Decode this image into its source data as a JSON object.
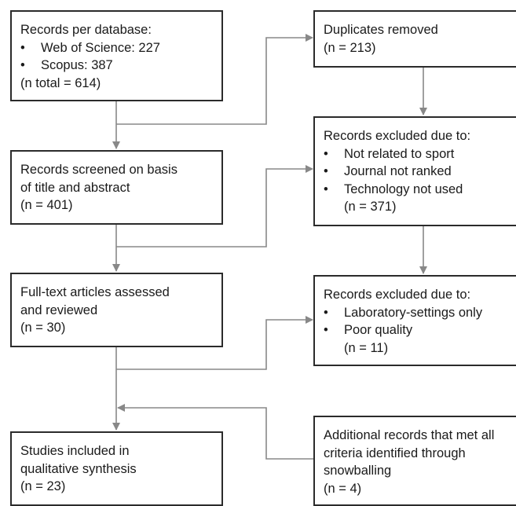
{
  "records": {
    "title": "Records per database:",
    "items": [
      "Web of Science: 227",
      "Scopus: 387"
    ],
    "total": "(n total = 614)"
  },
  "duplicates": {
    "title": "Duplicates removed",
    "count": "(n = 213)"
  },
  "screened": {
    "lines": [
      "Records screened on basis",
      "of title and abstract"
    ],
    "count": "(n = 401)"
  },
  "excluded1": {
    "title": "Records excluded due to:",
    "items": [
      "Not related to sport",
      "Journal not ranked",
      "Technology not used"
    ],
    "count": "(n = 371)"
  },
  "fulltext": {
    "lines": [
      "Full-text articles assessed",
      "and reviewed"
    ],
    "count": "(n = 30)"
  },
  "excluded2": {
    "title": "Records excluded due to:",
    "items": [
      "Laboratory-settings only",
      "Poor quality"
    ],
    "count": "(n = 11)"
  },
  "included": {
    "lines": [
      "Studies included in",
      "qualitative synthesis"
    ],
    "count": "(n = 23)"
  },
  "additional": {
    "lines": [
      "Additional records that met all",
      "criteria identified through",
      "snowballing"
    ],
    "count": "(n = 4)"
  }
}
